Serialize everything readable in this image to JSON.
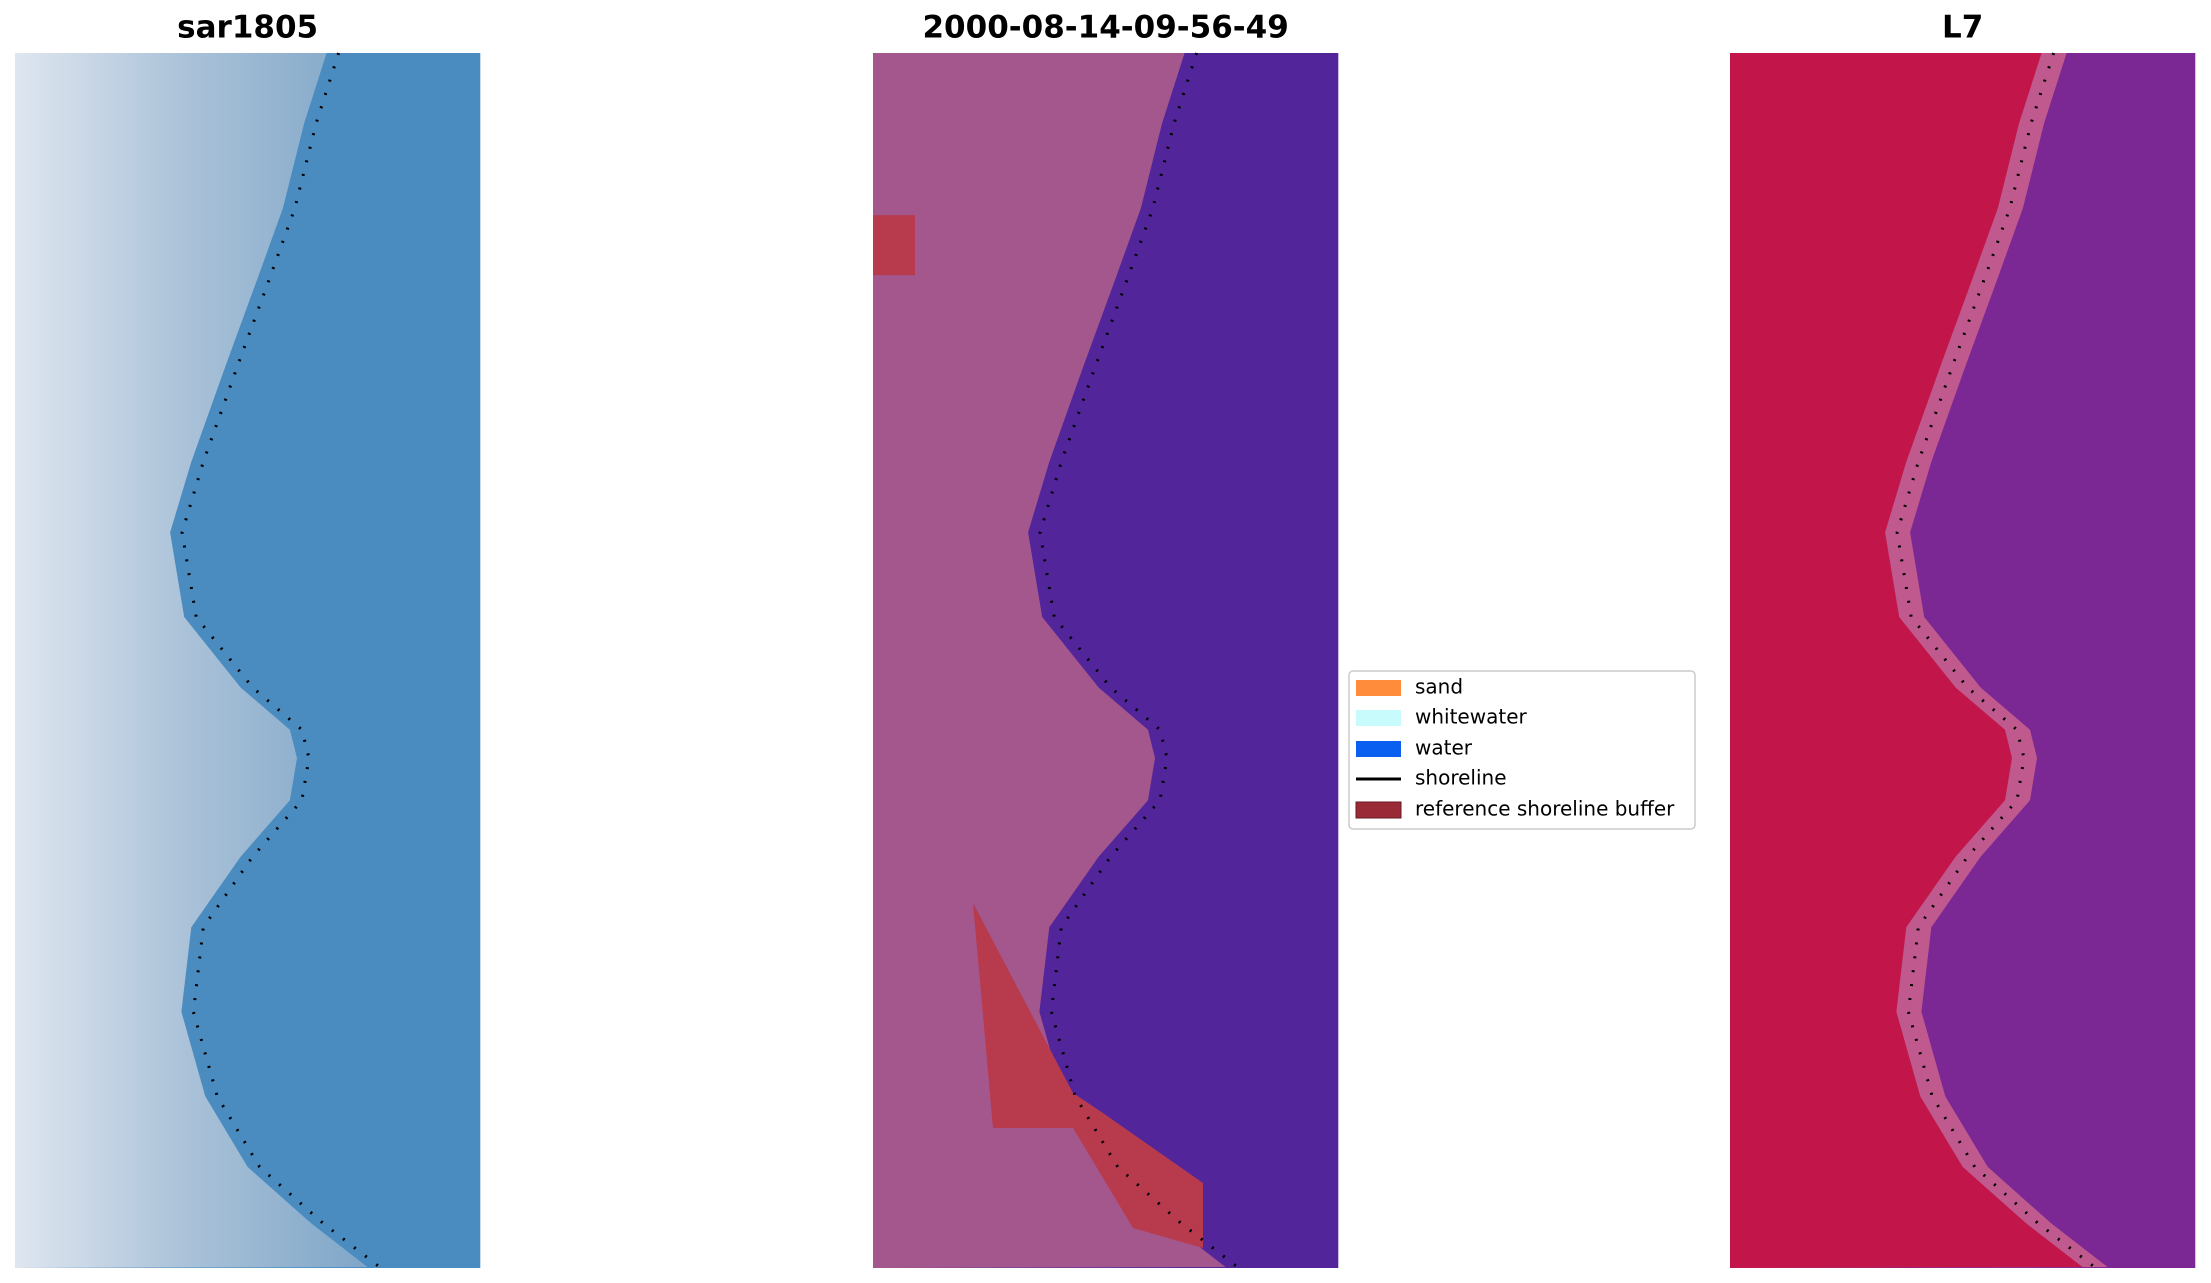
{
  "panels": [
    {
      "title": "sar1805",
      "land": "#b9c9dc",
      "water": "#4a8bc0",
      "edge": "#8fb0cc"
    },
    {
      "title": "2000-08-14-09-56-49",
      "land": "#a4578c",
      "water": "#52259a",
      "edge": "#a4578c"
    },
    {
      "title": "L7",
      "land": "#c2164b",
      "water": "#7b2894",
      "edge": "#c05a8e"
    }
  ],
  "legend": {
    "items": [
      {
        "label": "sand",
        "color": "#ff8c3a",
        "kind": "patch"
      },
      {
        "label": "whitewater",
        "color": "#c8fcfc",
        "kind": "patch"
      },
      {
        "label": "water",
        "color": "#0a5ff0",
        "kind": "patch"
      },
      {
        "label": "shoreline",
        "color": "#000000",
        "kind": "line"
      },
      {
        "label": "reference shoreline buffer",
        "color": "#9a2a35",
        "kind": "patch"
      }
    ]
  }
}
